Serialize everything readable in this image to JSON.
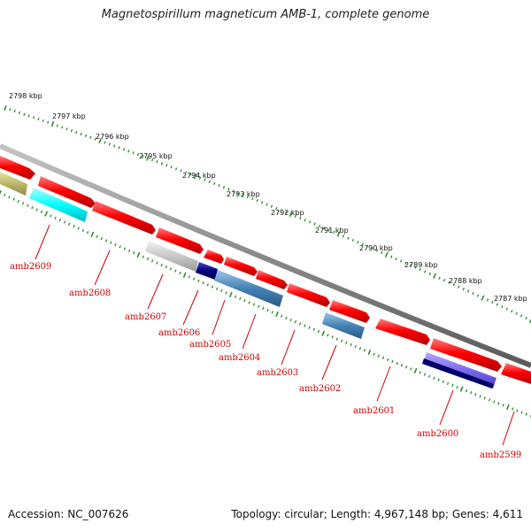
{
  "title": "Magnetospirillum magneticum AMB-1, complete genome",
  "footer": {
    "accession": "Accession: NC_007626",
    "summary": "Topology: circular; Length: 4,967,148 bp; Genes: 4,611"
  },
  "scale": {
    "kbp_labels": [
      "2798 kbp",
      "2797 kbp",
      "2796 kbp",
      "2795 kbp",
      "2794 kbp",
      "2793 kbp",
      "2792 kbp",
      "2791 kbp",
      "2790 kbp",
      "2789 kbp",
      "2788 kbp",
      "2787 kbp"
    ],
    "tick_color": "#2e8b2e"
  },
  "genes": {
    "labels": [
      "amb2609",
      "amb2608",
      "amb2607",
      "amb2606",
      "amb2605",
      "amb2604",
      "amb2603",
      "amb2602",
      "amb2601",
      "amb2600",
      "amb2599"
    ],
    "label_color": "#cc0000"
  },
  "colors": {
    "backbone": "#8a8a8a",
    "forward_gene": "#ff0000",
    "tick": "#2e8b2e"
  }
}
